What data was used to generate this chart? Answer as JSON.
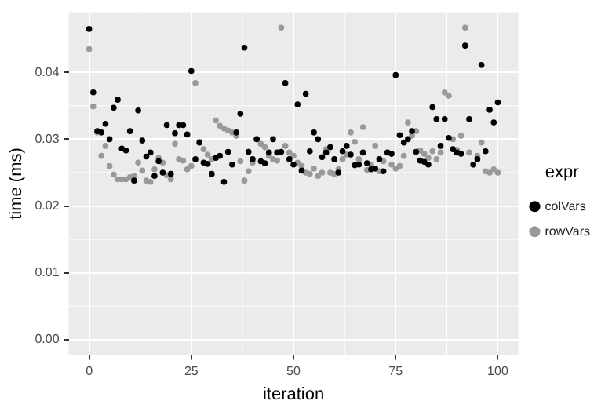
{
  "chart_data": {
    "type": "scatter",
    "xlabel": "iteration",
    "ylabel": "time (ms)",
    "legend_title": "expr",
    "legend": "right",
    "grid": true,
    "marker": "circle",
    "x": [
      0,
      1,
      2,
      3,
      4,
      5,
      6,
      7,
      8,
      9,
      10,
      11,
      12,
      13,
      14,
      15,
      16,
      17,
      18,
      19,
      20,
      21,
      22,
      23,
      24,
      25,
      26,
      27,
      28,
      29,
      30,
      31,
      32,
      33,
      34,
      35,
      36,
      37,
      38,
      39,
      40,
      41,
      42,
      43,
      44,
      45,
      46,
      47,
      48,
      49,
      50,
      51,
      52,
      53,
      54,
      55,
      56,
      57,
      58,
      59,
      60,
      61,
      62,
      63,
      64,
      65,
      66,
      67,
      68,
      69,
      70,
      71,
      72,
      73,
      74,
      75,
      76,
      77,
      78,
      79,
      80,
      81,
      82,
      83,
      84,
      85,
      86,
      87,
      88,
      89,
      90,
      91,
      92,
      93,
      94,
      95,
      96,
      97,
      98,
      99,
      100
    ],
    "xlim": [
      -5,
      105
    ],
    "xticks": [
      0,
      25,
      50,
      75,
      100
    ],
    "ylim": [
      -0.0023,
      0.049
    ],
    "yticks": [
      {
        "value": 0,
        "label": "0.00"
      },
      {
        "value": 0.01,
        "label": "0.01"
      },
      {
        "value": 0.02,
        "label": "0.02"
      },
      {
        "value": 0.03,
        "label": "0.03"
      },
      {
        "value": 0.04,
        "label": "0.04"
      }
    ],
    "series": [
      {
        "name": "colVars",
        "color": "#000000",
        "values": [
          0.0465,
          0.037,
          0.0312,
          0.031,
          0.0323,
          0.03,
          0.0347,
          0.0359,
          0.0286,
          0.0283,
          0.0312,
          0.0238,
          0.0343,
          0.0298,
          0.0274,
          0.028,
          0.0245,
          0.0267,
          0.025,
          0.0321,
          0.0248,
          0.0309,
          0.0321,
          0.0321,
          0.0307,
          0.0402,
          0.027,
          0.0295,
          0.0265,
          0.0263,
          0.0248,
          0.0272,
          0.0275,
          0.0236,
          0.0281,
          0.0262,
          0.031,
          0.0338,
          0.0437,
          0.0281,
          0.027,
          0.03,
          0.0267,
          0.0264,
          0.028,
          0.03,
          0.028,
          0.0281,
          0.0384,
          0.027,
          0.0262,
          0.0352,
          0.0253,
          0.0368,
          0.0282,
          0.031,
          0.03,
          0.0273,
          0.028,
          0.0288,
          0.027,
          0.025,
          0.0282,
          0.029,
          0.0277,
          0.0261,
          0.0262,
          0.028,
          0.0264,
          0.0255,
          0.0256,
          0.027,
          0.0252,
          0.028,
          0.0278,
          0.0396,
          0.0306,
          0.0295,
          0.03,
          0.0312,
          0.0281,
          0.0268,
          0.0266,
          0.0262,
          0.0348,
          0.033,
          0.029,
          0.033,
          0.0302,
          0.0285,
          0.028,
          0.0278,
          0.044,
          0.033,
          0.0262,
          0.027,
          0.0411,
          0.0282,
          0.0344,
          0.0325,
          0.0355
        ]
      },
      {
        "name": "rowVars",
        "color": "#999999",
        "values": [
          0.0435,
          0.0349,
          0.031,
          0.0275,
          0.029,
          0.026,
          0.0247,
          0.024,
          0.024,
          0.024,
          0.0243,
          0.0245,
          0.0265,
          0.0253,
          0.0238,
          0.0236,
          0.0255,
          0.0272,
          0.0265,
          0.0246,
          0.024,
          0.0293,
          0.027,
          0.0268,
          0.0255,
          0.026,
          0.0384,
          0.0296,
          0.0285,
          0.0277,
          0.027,
          0.0328,
          0.032,
          0.0316,
          0.0313,
          0.031,
          0.0305,
          0.0267,
          0.0238,
          0.0252,
          0.0265,
          0.03,
          0.0293,
          0.0288,
          0.0275,
          0.027,
          0.0268,
          0.0467,
          0.029,
          0.028,
          0.0275,
          0.0265,
          0.026,
          0.025,
          0.0248,
          0.0256,
          0.0245,
          0.025,
          0.0285,
          0.025,
          0.0248,
          0.0255,
          0.027,
          0.0277,
          0.031,
          0.0296,
          0.027,
          0.0318,
          0.0254,
          0.0262,
          0.029,
          0.0252,
          0.0267,
          0.028,
          0.0262,
          0.0256,
          0.026,
          0.0275,
          0.0325,
          0.0305,
          0.0312,
          0.0283,
          0.0278,
          0.0272,
          0.0282,
          0.027,
          0.028,
          0.037,
          0.0365,
          0.03,
          0.0284,
          0.0305,
          0.0467,
          0.028,
          0.0262,
          0.0275,
          0.0295,
          0.0252,
          0.025,
          0.0255,
          0.025
        ]
      }
    ]
  }
}
